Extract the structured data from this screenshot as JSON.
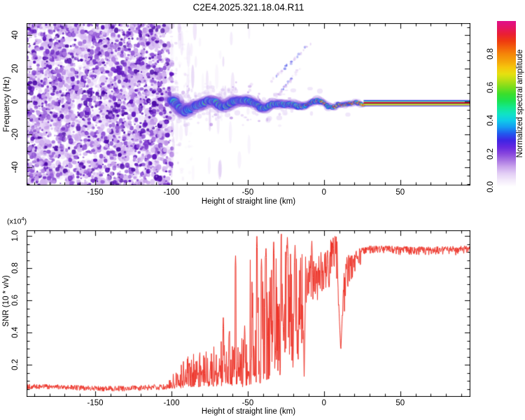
{
  "title": "C2E4.2025.321.18.04.R11",
  "chart_data": [
    {
      "id": "spectrogram",
      "type": "heatmap",
      "xlabel": "Height of straight line (km)",
      "ylabel": "Frequency (Hz)",
      "xlim": [
        -195,
        96
      ],
      "ylim": [
        -50.8,
        47.4
      ],
      "x_ticks": [
        -150,
        -100,
        -50,
        0,
        50
      ],
      "x_tick_labels": [
        "-150",
        "-100",
        "-50",
        "0",
        "50"
      ],
      "x_minor_step": 10,
      "y_ticks": [
        -40,
        -20,
        0,
        20,
        40
      ],
      "y_tick_labels": [
        "-40",
        "-20",
        "0",
        "20",
        "40"
      ],
      "y_minor_step": 5,
      "grid": false,
      "colorbar": {
        "label": "Normalized spectral amplitude",
        "range": [
          0,
          1
        ],
        "ticks": [
          0.0,
          0.2,
          0.4,
          0.6,
          0.8
        ],
        "tick_labels": [
          "0.0",
          "0.2",
          "0.4",
          "0.6",
          "0.8"
        ],
        "stops": [
          [
            0.0,
            "#ffffff"
          ],
          [
            0.04,
            "#f3eafa"
          ],
          [
            0.08,
            "#e3cff5"
          ],
          [
            0.12,
            "#cba6ec"
          ],
          [
            0.16,
            "#a975e2"
          ],
          [
            0.2,
            "#8847dd"
          ],
          [
            0.24,
            "#6428e0"
          ],
          [
            0.28,
            "#3f24e4"
          ],
          [
            0.32,
            "#2257ee"
          ],
          [
            0.36,
            "#149bf2"
          ],
          [
            0.4,
            "#0fcbe9"
          ],
          [
            0.44,
            "#10e3c4"
          ],
          [
            0.48,
            "#13e88e"
          ],
          [
            0.52,
            "#1ce24f"
          ],
          [
            0.56,
            "#3ade2b"
          ],
          [
            0.6,
            "#78dd1c"
          ],
          [
            0.64,
            "#b4df15"
          ],
          [
            0.68,
            "#e6e010"
          ],
          [
            0.72,
            "#f6c60c"
          ],
          [
            0.76,
            "#f5a30a"
          ],
          [
            0.8,
            "#f58709"
          ],
          [
            0.84,
            "#f2600b"
          ],
          [
            0.88,
            "#ee3a10"
          ],
          [
            0.92,
            "#ea1f33"
          ],
          [
            0.96,
            "#e51563"
          ],
          [
            1.0,
            "#e00f8a"
          ]
        ]
      },
      "features": {
        "noise_region": {
          "from_km": -195,
          "to_km": -100,
          "description": "dense purple speckle noise covering all frequencies"
        },
        "signal_band": {
          "from_km": -100,
          "to_km": 26,
          "center_freq_hz": -1.5,
          "wobble_hz": 4.5,
          "description": "noisy wandering carrier band with blue/cyan/green envelope and yellow-red hotspots"
        },
        "carrier_dip": {
          "from_km": 0,
          "to_km": 9,
          "max_dip_hz": 2
        },
        "carrier_line": {
          "from_km": 26,
          "to_km": 96,
          "freq_hz": -1,
          "description": "sharp straight carrier line, layered blue/green/red/yellow stripes"
        },
        "diagonal_streaks": [
          {
            "from": [
              -35,
              12
            ],
            "to": [
              -8,
              36
            ]
          },
          {
            "from": [
              -30,
              4
            ],
            "to": [
              -16,
              20
            ]
          }
        ],
        "noise_palette": [
          "#f1e8fb",
          "#e6d4f7",
          "#d6baf1",
          "#c29ae9",
          "#aa77e0",
          "#9257d6",
          "#7a36cc",
          "#5f17bd",
          "#4e0ca8"
        ],
        "band_palette": {
          "pale": "#d9c2f2",
          "purple": "#8a55dd",
          "blue": "#2a36e8",
          "cyan": "#12cde8",
          "green": "#19e356",
          "yellow": "#eee012",
          "orange": "#f59a0a",
          "red": "#ee2a12"
        },
        "carrier_stripes": [
          [
            -5.5,
            5.5,
            "#cdb6ef",
            0.35
          ],
          [
            -4.3,
            -3.3,
            "#2233e8",
            1
          ],
          [
            -3.3,
            -2.6,
            "#10cbe9",
            1
          ],
          [
            -2.6,
            -1.7,
            "#16e369",
            1
          ],
          [
            -1.7,
            0.9,
            "#e8174d",
            1
          ],
          [
            -0.6,
            0.45,
            "#b00718",
            1
          ],
          [
            0.9,
            1.8,
            "#43de28",
            1
          ],
          [
            1.8,
            2.7,
            "#e6e010",
            1
          ],
          [
            2.7,
            3.4,
            "#f59a0a",
            1
          ],
          [
            3.4,
            4.3,
            "#2233e8",
            1
          ]
        ]
      }
    },
    {
      "id": "snr",
      "type": "line",
      "xlabel": "Height of straight line (km)",
      "ylabel": "SNR (10 * v/v)",
      "y_scale_prefix": "(x10",
      "y_scale_exp": "4",
      "y_scale_suffix": ")",
      "xlim": [
        -195,
        96
      ],
      "ylim": [
        0,
        1.035
      ],
      "x_ticks": [
        -150,
        -100,
        -50,
        0,
        50
      ],
      "x_tick_labels": [
        "-150",
        "-100",
        "-50",
        "0",
        "50"
      ],
      "x_minor_step": 10,
      "y_ticks": [
        0.2,
        0.4,
        0.6,
        0.8,
        1.0
      ],
      "y_tick_labels": [
        "0.2",
        "0.4",
        "0.6",
        "0.8",
        "1.0"
      ],
      "y_minor_step": 0.05,
      "grid": false,
      "line_color": "#ee3328",
      "envelope_segments": [
        [
          -195,
          -102,
          0.042,
          0.072,
          0.042,
          0.078,
          1.0
        ],
        [
          -102,
          -88,
          0.048,
          0.1,
          0.05,
          0.27,
          1.9
        ],
        [
          -88,
          -71,
          0.05,
          0.28,
          0.06,
          0.32,
          1.7
        ],
        [
          -71,
          -56,
          0.06,
          0.33,
          0.07,
          0.42,
          1.6
        ],
        [
          -56,
          -49,
          0.06,
          0.38,
          0.07,
          0.36,
          1.5
        ],
        [
          -49,
          -36,
          0.08,
          0.85,
          0.1,
          0.95,
          2.1
        ],
        [
          -36,
          -29,
          0.13,
          0.8,
          0.17,
          1.0,
          1.25
        ],
        [
          -29,
          -22,
          0.12,
          1.034,
          0.25,
          0.95,
          1.0
        ],
        [
          -22,
          -12,
          0.15,
          0.92,
          0.35,
          0.9,
          0.95
        ],
        [
          -12,
          -3,
          0.45,
          0.9,
          0.58,
          0.92,
          0.9
        ],
        [
          -3,
          4,
          0.55,
          0.95,
          0.65,
          0.95,
          0.85
        ],
        [
          4,
          9,
          0.68,
          1.0,
          0.72,
          1.0,
          0.8
        ],
        [
          9,
          14,
          0.3,
          0.9,
          0.55,
          0.88,
          0.9
        ],
        [
          14,
          24,
          0.62,
          0.88,
          0.8,
          0.92,
          0.7
        ],
        [
          24,
          96,
          0.872,
          0.932,
          0.886,
          0.945,
          0.5
        ]
      ],
      "spikes": [
        {
          "h": -66,
          "v": 0.5
        },
        {
          "h": -62,
          "v": 0.44
        },
        {
          "h": -58,
          "v": 0.88
        },
        {
          "h": -52,
          "v": 0.45
        },
        {
          "h": -44,
          "v": 1.0
        },
        {
          "h": -41,
          "v": 0.86
        },
        {
          "h": -38,
          "v": 0.93
        },
        {
          "h": -33,
          "v": 0.97
        },
        {
          "h": -28,
          "v": 1.034
        },
        {
          "h": -24,
          "v": 1.0
        },
        {
          "h": -19,
          "v": 0.95
        },
        {
          "h": -8,
          "v": 0.98
        },
        {
          "h": 6,
          "v": 1.0
        },
        {
          "h": 8,
          "v": 0.97
        }
      ],
      "dips": [
        {
          "h": -45.5,
          "v": 0.055,
          "w": 0.7
        },
        {
          "h": -26.5,
          "v": 0.33,
          "w": 1.3
        },
        {
          "h": -17,
          "v": 0.16,
          "w": 0.6
        },
        {
          "h": -13,
          "v": 0.12,
          "w": 0.8
        },
        {
          "h": 11,
          "v": 0.28,
          "w": 2.2
        }
      ],
      "approx_mean_by_height": {
        "height_km": [
          -190,
          -150,
          -110,
          -100,
          -90,
          -80,
          -70,
          -60,
          -50,
          -45,
          -40,
          -35,
          -30,
          -25,
          -20,
          -15,
          -10,
          -5,
          0,
          5,
          8,
          11,
          15,
          20,
          25,
          30,
          40,
          60,
          80,
          95
        ],
        "snr_x1e4": [
          0.05,
          0.05,
          0.05,
          0.06,
          0.12,
          0.15,
          0.17,
          0.2,
          0.2,
          0.35,
          0.45,
          0.45,
          0.55,
          0.65,
          0.6,
          0.62,
          0.7,
          0.75,
          0.78,
          0.82,
          0.95,
          0.28,
          0.7,
          0.85,
          0.89,
          0.9,
          0.9,
          0.91,
          0.92,
          0.92
        ]
      }
    }
  ]
}
